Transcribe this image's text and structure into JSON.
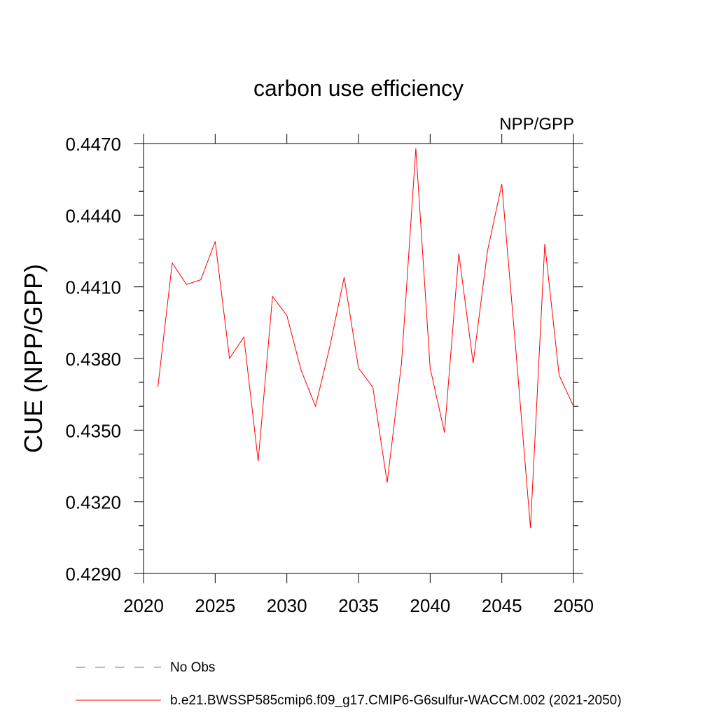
{
  "chart_data": {
    "type": "line",
    "title": "carbon use efficiency",
    "subtitle": "NPP/GPP",
    "xlabel": "",
    "ylabel": "CUE  (NPP/GPP)",
    "xlim": [
      2020,
      2050
    ],
    "ylim": [
      0.429,
      0.447
    ],
    "xticks": [
      "2020",
      "2025",
      "2030",
      "2035",
      "2040",
      "2045",
      "2050"
    ],
    "yticks": [
      "0.4290",
      "0.4320",
      "0.4350",
      "0.4380",
      "0.4410",
      "0.4440",
      "0.4470"
    ],
    "grid": false,
    "legend_position": "bottom",
    "series": [
      {
        "name": "b.e21.BWSSP585cmip6.f09_g17.CMIP6-G6sulfur-WACCM.002 (2021-2050)",
        "color": "#ff0000",
        "style": "solid",
        "x": [
          2021,
          2022,
          2023,
          2024,
          2025,
          2026,
          2027,
          2028,
          2029,
          2030,
          2031,
          2032,
          2033,
          2034,
          2035,
          2036,
          2037,
          2038,
          2039,
          2040,
          2041,
          2042,
          2043,
          2044,
          2045,
          2046,
          2047,
          2048,
          2049,
          2050
        ],
        "y": [
          0.4368,
          0.442,
          0.4411,
          0.4413,
          0.4429,
          0.438,
          0.4389,
          0.4337,
          0.4406,
          0.4398,
          0.4375,
          0.436,
          0.4385,
          0.4414,
          0.4376,
          0.4368,
          0.4328,
          0.4378,
          0.4468,
          0.4376,
          0.4349,
          0.4424,
          0.4378,
          0.4425,
          0.4453,
          0.4382,
          0.4309,
          0.4428,
          0.4373,
          0.436
        ]
      },
      {
        "name": "No Obs",
        "color": "#7b6fb0",
        "style": "dashed",
        "x": [],
        "y": []
      }
    ]
  }
}
